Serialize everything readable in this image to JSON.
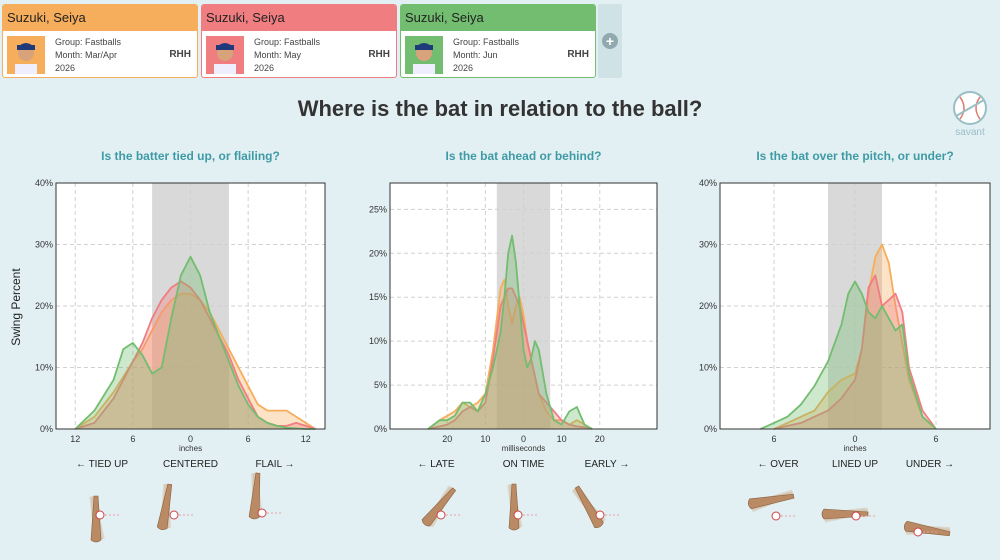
{
  "cards": [
    {
      "name": "Suzuki, Seiya",
      "group": "Group: Fastballs",
      "month": "Month: Mar/Apr",
      "year": "2026",
      "hand": "RHH",
      "color": "#f6ad5c"
    },
    {
      "name": "Suzuki, Seiya",
      "group": "Group: Fastballs",
      "month": "Month: May",
      "year": "2026",
      "hand": "RHH",
      "color": "#f07d80"
    },
    {
      "name": "Suzuki, Seiya",
      "group": "Group: Fastballs",
      "month": "Month: Jun",
      "year": "2026",
      "hand": "RHH",
      "color": "#72bd6f"
    }
  ],
  "add_icon": "plus-icon",
  "title": "Where is the bat in relation to the ball?",
  "logo_text": "savant",
  "ylabel": "Swing Percent",
  "chart_data": [
    {
      "type": "area",
      "title": "Is the batter tied up, or flailing?",
      "xlabel": "inches",
      "xlim": [
        14,
        -14
      ],
      "ylim": [
        0,
        40
      ],
      "yticks": [
        0,
        10,
        20,
        30,
        40
      ],
      "yticklabels": [
        "0%",
        "10%",
        "20%",
        "30%",
        "40%"
      ],
      "xticks": [
        12,
        6,
        0,
        -6,
        -12
      ],
      "xticklabels": [
        "12",
        "6",
        "0",
        "6",
        "12"
      ],
      "shade": [
        4,
        -4
      ],
      "categories": [
        "← TIED UP",
        "CENTERED",
        "FLAIL →"
      ],
      "series": [
        {
          "color": "#f6ad5c",
          "x": [
            12,
            10,
            8,
            6,
            5,
            4,
            3,
            2,
            1,
            0,
            -1,
            -2,
            -3,
            -4,
            -5,
            -6,
            -7,
            -8,
            -9,
            -10,
            -11,
            -12,
            -13
          ],
          "y": [
            0,
            2,
            6,
            11,
            13,
            16,
            19,
            21,
            22,
            22,
            21,
            19,
            16,
            13,
            10,
            7,
            4,
            3,
            3,
            3,
            2,
            1,
            0
          ]
        },
        {
          "color": "#f07d80",
          "x": [
            12,
            10,
            8,
            6,
            5,
            4,
            3,
            2,
            1,
            0,
            -1,
            -2,
            -3,
            -4,
            -5,
            -6,
            -7,
            -8,
            -9,
            -10,
            -11,
            -12,
            -13
          ],
          "y": [
            0,
            1,
            5,
            11,
            14,
            18,
            21,
            23,
            24,
            23,
            21,
            18,
            15,
            12,
            8,
            5,
            2,
            1,
            0.5,
            0.5,
            1,
            0.5,
            0
          ]
        },
        {
          "color": "#72bd6f",
          "x": [
            12,
            10,
            8,
            7,
            6,
            5,
            4,
            3,
            2,
            1,
            0,
            -1,
            -2,
            -3,
            -4,
            -5,
            -6,
            -7,
            -8,
            -9,
            -10,
            -12,
            -13
          ],
          "y": [
            0,
            3,
            8,
            13,
            14,
            12,
            9,
            10,
            18,
            25,
            28,
            25,
            19,
            15,
            11,
            7,
            4,
            2,
            1,
            0.5,
            0.2,
            0,
            0
          ]
        }
      ]
    },
    {
      "type": "area",
      "title": "Is the bat ahead or behind?",
      "xlabel": "milliseconds",
      "xlim": [
        35,
        -35
      ],
      "ylim": [
        0,
        28
      ],
      "yticks": [
        0,
        5,
        10,
        15,
        20,
        25
      ],
      "yticklabels": [
        "0%",
        "5%",
        "10%",
        "15%",
        "20%",
        "25%"
      ],
      "xticks": [
        20,
        10,
        0,
        -10,
        -20
      ],
      "xticklabels": [
        "20",
        "10",
        "0",
        "10",
        "20"
      ],
      "shade": [
        7,
        -7
      ],
      "categories": [
        "← LATE",
        "ON TIME",
        "EARLY →"
      ],
      "series": [
        {
          "color": "#f6ad5c",
          "x": [
            25,
            22,
            20,
            18,
            16,
            14,
            12,
            10,
            8,
            6,
            5,
            4,
            3,
            2,
            1,
            0,
            -1,
            -2,
            -4,
            -6,
            -8,
            -10,
            -12,
            -14,
            -16,
            -18
          ],
          "y": [
            0,
            1,
            1.5,
            2,
            3,
            2.5,
            3,
            4,
            9,
            16,
            17,
            14,
            12,
            14,
            15,
            13,
            10,
            8,
            4,
            2,
            1,
            1,
            0.5,
            1,
            0.5,
            0
          ]
        },
        {
          "color": "#f07d80",
          "x": [
            25,
            22,
            20,
            18,
            16,
            14,
            12,
            10,
            8,
            6,
            5,
            4,
            3,
            2,
            1,
            0,
            -1,
            -2,
            -4,
            -6,
            -8,
            -10,
            -12,
            -14,
            -16,
            -18
          ],
          "y": [
            0,
            0.3,
            0.5,
            1,
            2,
            2.5,
            2,
            3,
            8,
            14,
            15,
            16,
            16,
            15,
            14,
            12,
            10,
            8,
            4,
            3,
            2,
            1,
            0.5,
            0.3,
            0.2,
            0
          ]
        },
        {
          "color": "#72bd6f",
          "x": [
            25,
            22,
            20,
            18,
            16,
            14,
            12,
            10,
            8,
            6,
            5,
            4,
            3,
            2,
            1,
            0,
            -1,
            -2,
            -3,
            -4,
            -6,
            -8,
            -10,
            -12,
            -14,
            -16,
            -18
          ],
          "y": [
            0,
            1,
            1,
            1.5,
            3,
            3,
            2,
            4,
            7,
            11,
            15,
            20,
            22,
            19,
            14,
            9,
            7,
            8,
            10,
            9,
            4,
            1,
            0.5,
            2,
            2.5,
            0.5,
            0
          ]
        }
      ]
    },
    {
      "type": "area",
      "title": "Is the bat over the pitch, or under?",
      "xlabel": "inches",
      "xlim": [
        -10,
        10
      ],
      "ylim": [
        0,
        40
      ],
      "yticks": [
        0,
        10,
        20,
        30,
        40
      ],
      "yticklabels": [
        "0%",
        "10%",
        "20%",
        "30%",
        "40%"
      ],
      "xticks": [
        -6,
        0,
        6
      ],
      "xticklabels": [
        "6",
        "0",
        "6"
      ],
      "shade": [
        -2,
        2
      ],
      "categories": [
        "← OVER",
        "LINED UP",
        "UNDER →"
      ],
      "series": [
        {
          "color": "#f6ad5c",
          "x": [
            -6,
            -5,
            -4,
            -3,
            -2,
            -1,
            0,
            0.5,
            1,
            1.5,
            2,
            2.5,
            3,
            3.5,
            4,
            5,
            6
          ],
          "y": [
            0,
            1,
            2,
            3,
            6,
            8,
            9,
            13,
            22,
            28,
            30,
            27,
            20,
            14,
            8,
            2,
            0
          ]
        },
        {
          "color": "#f07d80",
          "x": [
            -6,
            -5,
            -4,
            -3,
            -2,
            -1,
            0,
            0.5,
            1,
            1.5,
            2,
            2.5,
            3,
            3.5,
            4,
            5,
            6
          ],
          "y": [
            0,
            0.5,
            1,
            2,
            3,
            5,
            8,
            13,
            23,
            25,
            20,
            21,
            22,
            19,
            10,
            3,
            0
          ]
        },
        {
          "color": "#72bd6f",
          "x": [
            -7,
            -6,
            -5,
            -4,
            -3,
            -2,
            -1,
            -0.5,
            0,
            0.5,
            1,
            1.5,
            2,
            2.5,
            3,
            3.5,
            4,
            5,
            6
          ],
          "y": [
            0,
            1,
            2,
            4,
            7,
            11,
            17,
            22,
            24,
            22,
            19,
            18,
            20,
            18,
            16,
            17,
            9,
            2,
            0
          ]
        }
      ]
    }
  ]
}
